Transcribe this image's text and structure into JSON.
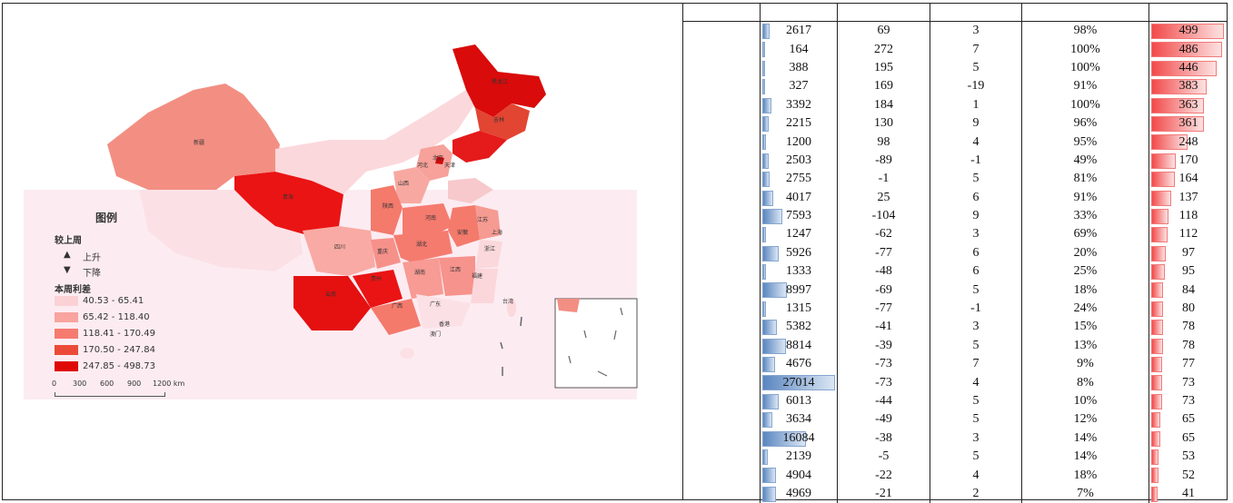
{
  "legend": {
    "title": "图例",
    "trend_title": "较上周",
    "up_label": "上升",
    "down_label": "下降",
    "diff_title": "本周利差",
    "ranges": [
      {
        "label": "40.53 - 65.41",
        "color": "#fad2d6"
      },
      {
        "label": "65.42 - 118.40",
        "color": "#f9a49e"
      },
      {
        "label": "118.41 - 170.49",
        "color": "#f57b6f"
      },
      {
        "label": "170.50 - 247.84",
        "color": "#ec4a38"
      },
      {
        "label": "247.85 - 498.73",
        "color": "#e00707"
      }
    ],
    "scale_labels": [
      "0",
      "300",
      "600",
      "900",
      "1200 km"
    ]
  },
  "map_labels": {
    "xinjiang": "新疆",
    "qinghai": "青海",
    "heilongjiang": "黑龙江",
    "jilin": "吉林",
    "beijing": "北京",
    "tianjin": "天津",
    "hebei": "河北",
    "shanxi": "山西",
    "shaanxi": "陕西",
    "henan": "河南",
    "hubei": "湖北",
    "anhui": "安徽",
    "jiangsu": "江苏",
    "shanghai": "上海",
    "zhejiang": "浙江",
    "sichuan": "四川",
    "chongqing": "重庆",
    "hunan": "湖南",
    "jiangxi": "江西",
    "fujian": "福建",
    "guizhou": "贵州",
    "yunnan": "云南",
    "guangxi": "广西",
    "guangdong": "广东",
    "taiwan": "台湾",
    "hongkong": "香港",
    "macau": "澳门"
  },
  "table": {
    "headers": [
      "",
      "",
      "",
      "",
      "",
      ""
    ],
    "rows": [
      {
        "c1": "2617",
        "c2": "69",
        "c3": "3",
        "c4": "98%",
        "c5": "499"
      },
      {
        "c1": "164",
        "c2": "272",
        "c3": "7",
        "c4": "100%",
        "c5": "486"
      },
      {
        "c1": "388",
        "c2": "195",
        "c3": "5",
        "c4": "100%",
        "c5": "446"
      },
      {
        "c1": "327",
        "c2": "169",
        "c3": "-19",
        "c4": "91%",
        "c5": "383"
      },
      {
        "c1": "3392",
        "c2": "184",
        "c3": "1",
        "c4": "100%",
        "c5": "363"
      },
      {
        "c1": "2215",
        "c2": "130",
        "c3": "9",
        "c4": "96%",
        "c5": "361"
      },
      {
        "c1": "1200",
        "c2": "98",
        "c3": "4",
        "c4": "95%",
        "c5": "248"
      },
      {
        "c1": "2503",
        "c2": "-89",
        "c3": "-1",
        "c4": "49%",
        "c5": "170"
      },
      {
        "c1": "2755",
        "c2": "-1",
        "c3": "5",
        "c4": "81%",
        "c5": "164"
      },
      {
        "c1": "4017",
        "c2": "25",
        "c3": "6",
        "c4": "91%",
        "c5": "137"
      },
      {
        "c1": "7593",
        "c2": "-104",
        "c3": "9",
        "c4": "33%",
        "c5": "118"
      },
      {
        "c1": "1247",
        "c2": "-62",
        "c3": "3",
        "c4": "69%",
        "c5": "112"
      },
      {
        "c1": "5926",
        "c2": "-77",
        "c3": "6",
        "c4": "20%",
        "c5": "97"
      },
      {
        "c1": "1333",
        "c2": "-48",
        "c3": "6",
        "c4": "25%",
        "c5": "95"
      },
      {
        "c1": "8997",
        "c2": "-69",
        "c3": "5",
        "c4": "18%",
        "c5": "84"
      },
      {
        "c1": "1315",
        "c2": "-77",
        "c3": "-1",
        "c4": "24%",
        "c5": "80"
      },
      {
        "c1": "5382",
        "c2": "-41",
        "c3": "3",
        "c4": "15%",
        "c5": "78"
      },
      {
        "c1": "8814",
        "c2": "-39",
        "c3": "5",
        "c4": "13%",
        "c5": "78"
      },
      {
        "c1": "4676",
        "c2": "-73",
        "c3": "7",
        "c4": "9%",
        "c5": "77"
      },
      {
        "c1": "27014",
        "c2": "-73",
        "c3": "4",
        "c4": "8%",
        "c5": "73"
      },
      {
        "c1": "6013",
        "c2": "-44",
        "c3": "5",
        "c4": "10%",
        "c5": "73"
      },
      {
        "c1": "3634",
        "c2": "-49",
        "c3": "5",
        "c4": "12%",
        "c5": "65"
      },
      {
        "c1": "16084",
        "c2": "-38",
        "c3": "3",
        "c4": "14%",
        "c5": "65"
      },
      {
        "c1": "2139",
        "c2": "-5",
        "c3": "5",
        "c4": "14%",
        "c5": "53"
      },
      {
        "c1": "4904",
        "c2": "-22",
        "c3": "4",
        "c4": "18%",
        "c5": "52"
      },
      {
        "c1": "4969",
        "c2": "-21",
        "c3": "2",
        "c4": "7%",
        "c5": "41"
      }
    ]
  }
}
